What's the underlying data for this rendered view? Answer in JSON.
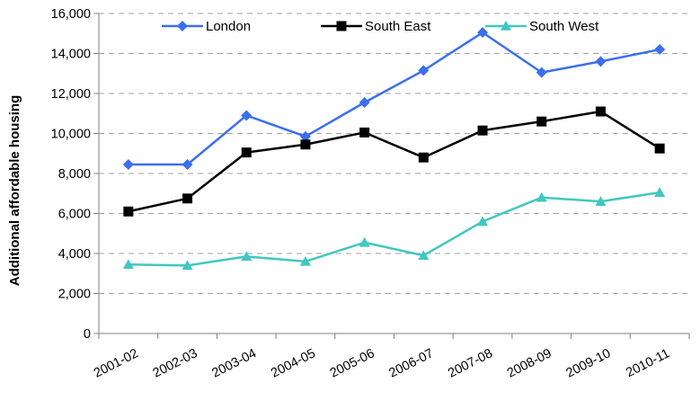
{
  "chart_data": {
    "type": "line",
    "title": "",
    "xlabel": "",
    "ylabel": "Additional affordable housing",
    "categories": [
      "2001-02",
      "2002-03",
      "2003-04",
      "2004-05",
      "2005-06",
      "2006-07",
      "2007-08",
      "2008-09",
      "2009-10",
      "2010-11"
    ],
    "ylim": [
      0,
      16000
    ],
    "yticks": [
      "0",
      "2,000",
      "4,000",
      "6,000",
      "8,000",
      "10,000",
      "12,000",
      "14,000",
      "16,000"
    ],
    "grid": "horizontal dashed",
    "legend_position": "top",
    "series": [
      {
        "name": "London",
        "color": "#3b6ef0",
        "marker": "diamond",
        "values": [
          8450,
          8450,
          10900,
          9850,
          11550,
          13150,
          15050,
          13050,
          13600,
          14200
        ]
      },
      {
        "name": "South East",
        "color": "#000000",
        "marker": "square",
        "values": [
          6100,
          6750,
          9050,
          9450,
          10050,
          8800,
          10150,
          10600,
          11100,
          9250
        ]
      },
      {
        "name": "South West",
        "color": "#40c8c0",
        "marker": "triangle",
        "values": [
          3450,
          3400,
          3850,
          3600,
          4550,
          3900,
          5600,
          6800,
          6600,
          7050
        ]
      }
    ]
  }
}
